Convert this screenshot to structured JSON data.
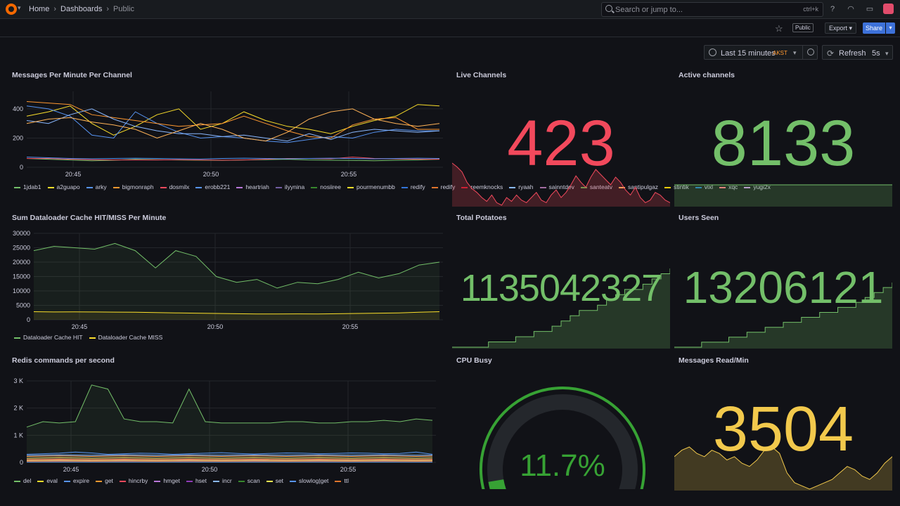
{
  "topbar": {
    "breadcrumb": [
      "Home",
      "Dashboards",
      "Public"
    ],
    "search_placeholder": "Search or jump to...",
    "search_shortcut": "ctrl+k"
  },
  "subbar": {
    "public_badge": "Public",
    "export_label": "Export",
    "share_label": "Share"
  },
  "controls": {
    "time_range": "Last 15 minutes",
    "timezone": "AKST",
    "refresh_label": "Refresh",
    "refresh_interval": "5s"
  },
  "panels": {
    "messages": {
      "title": "Messages Per Minute Per Channel"
    },
    "dataloader": {
      "title": "Sum Dataloader Cache HIT/MISS Per Minute"
    },
    "redis": {
      "title": "Redis commands per second"
    },
    "live": {
      "title": "Live Channels",
      "value": "423",
      "color": "#f2495c"
    },
    "active": {
      "title": "Active channels",
      "value": "8133",
      "color": "#73bf69"
    },
    "potatoes": {
      "title": "Total Potatoes",
      "value": "1135042327",
      "color": "#73bf69"
    },
    "users": {
      "title": "Users Seen",
      "value": "13206121",
      "color": "#73bf69"
    },
    "cpu": {
      "title": "CPU Busy",
      "value": "11.7%",
      "percent": 11.7,
      "color": "#37a234"
    },
    "msgread": {
      "title": "Messages Read/Min",
      "value": "3504",
      "color": "#f2c94c"
    }
  },
  "chart_data": [
    {
      "type": "line",
      "title": "Messages Per Minute Per Channel",
      "x_ticks": [
        "20:45",
        "20:50",
        "20:55"
      ],
      "y_ticks": [
        "0",
        "200",
        "400"
      ],
      "ylim": [
        0,
        520
      ],
      "series": [
        {
          "name": "1jdab1",
          "color": "#73bf69",
          "values": [
            60,
            55,
            50,
            45,
            48,
            55,
            52,
            50,
            48,
            47,
            50,
            52,
            55,
            50,
            48,
            47,
            45,
            48,
            50,
            55
          ]
        },
        {
          "name": "a2guapo",
          "color": "#fade2a",
          "values": [
            350,
            380,
            420,
            300,
            220,
            280,
            360,
            400,
            260,
            300,
            380,
            320,
            280,
            260,
            230,
            280,
            320,
            350,
            430,
            420
          ]
        },
        {
          "name": "arky",
          "color": "#5794f2",
          "values": [
            420,
            400,
            350,
            220,
            200,
            380,
            300,
            240,
            200,
            210,
            200,
            180,
            170,
            190,
            210,
            200,
            240,
            260,
            250,
            250
          ]
        },
        {
          "name": "bigmonraph",
          "color": "#ff9830",
          "values": [
            450,
            440,
            430,
            360,
            340,
            320,
            300,
            280,
            290,
            300,
            350,
            300,
            250,
            210,
            200,
            290,
            330,
            340,
            260,
            260
          ]
        },
        {
          "name": "dosmilx",
          "color": "#f2495c",
          "values": [
            60,
            60,
            55,
            52,
            50,
            50,
            50,
            52,
            50,
            48,
            50,
            55,
            60,
            60,
            58,
            70,
            60,
            58,
            55,
            55
          ]
        },
        {
          "name": "erobb221",
          "color": "#5794f2",
          "values": [
            70,
            65,
            60,
            58,
            60,
            62,
            60,
            58,
            56,
            60,
            62,
            60,
            58,
            60,
            62,
            60,
            58,
            60,
            62,
            60
          ]
        },
        {
          "name": "ryaah",
          "color": "#8ab8ff",
          "values": [
            320,
            300,
            360,
            400,
            330,
            280,
            250,
            230,
            230,
            210,
            220,
            200,
            180,
            230,
            190,
            240,
            260,
            250,
            240,
            250
          ]
        },
        {
          "name": "santipulgaz",
          "color": "#ffb357",
          "values": [
            300,
            330,
            340,
            310,
            290,
            260,
            200,
            250,
            300,
            260,
            200,
            180,
            240,
            330,
            380,
            400,
            330,
            300,
            280,
            300
          ]
        }
      ]
    },
    {
      "type": "area",
      "title": "Sum Dataloader Cache HIT/MISS Per Minute",
      "x_ticks": [
        "20:45",
        "20:50",
        "20:55"
      ],
      "y_ticks": [
        "0",
        "5000",
        "10000",
        "15000",
        "20000",
        "25000",
        "30000"
      ],
      "ylim": [
        0,
        30000
      ],
      "series": [
        {
          "name": "Dataloader Cache HIT",
          "color": "#73bf69",
          "values": [
            24000,
            25500,
            25000,
            24500,
            26500,
            24000,
            18000,
            24000,
            22000,
            15000,
            13000,
            14000,
            11000,
            13000,
            12500,
            14000,
            16500,
            14500,
            16000,
            19000,
            20000
          ]
        },
        {
          "name": "Dataloader Cache MISS",
          "color": "#fade2a",
          "values": [
            2800,
            2700,
            2750,
            2700,
            2650,
            2600,
            2500,
            2400,
            2300,
            2200,
            2100,
            2000,
            2000,
            2050,
            2000,
            2100,
            2200,
            2300,
            2400,
            2600,
            2800
          ]
        }
      ]
    },
    {
      "type": "area",
      "title": "Redis commands per second",
      "x_ticks": [
        "20:45",
        "20:50",
        "20:55"
      ],
      "y_ticks": [
        "0",
        "1 K",
        "2 K",
        "3 K"
      ],
      "ylim": [
        0,
        3000
      ],
      "series": [
        {
          "name": "del",
          "color": "#73bf69",
          "values": [
            1300,
            1500,
            1450,
            1500,
            2850,
            2700,
            1600,
            1500,
            1500,
            1450,
            2700,
            1500,
            1450,
            1450,
            1450,
            1450,
            1500,
            1500,
            1450,
            1450,
            1500,
            1500,
            1550,
            1500,
            1600,
            1550
          ]
        },
        {
          "name": "eval",
          "color": "#fade2a",
          "values": [
            150,
            160,
            170,
            160,
            150,
            160,
            170,
            160,
            150,
            160,
            170,
            160,
            150,
            160,
            170,
            160,
            150,
            160,
            170,
            160,
            150,
            160,
            170,
            160,
            150,
            160
          ]
        },
        {
          "name": "expire",
          "color": "#5794f2",
          "values": [
            300,
            320,
            340,
            380,
            350,
            300,
            320,
            340,
            330,
            300,
            320,
            340,
            360,
            330,
            310,
            330,
            350,
            340,
            320,
            330,
            350,
            340,
            320,
            330,
            380,
            300
          ]
        },
        {
          "name": "get",
          "color": "#ff9830",
          "values": [
            220,
            230,
            240,
            230,
            220,
            230,
            240,
            230,
            220,
            230,
            240,
            230,
            220,
            230,
            240,
            230,
            220,
            230,
            240,
            230,
            220,
            230,
            240,
            230,
            220,
            230
          ]
        },
        {
          "name": "hincrby",
          "color": "#f2495c",
          "values": [
            100,
            110,
            120,
            110,
            100,
            110,
            120,
            110,
            100,
            110,
            120,
            110,
            100,
            110,
            120,
            110,
            100,
            110,
            120,
            110,
            100,
            110,
            120,
            110,
            100,
            110
          ]
        },
        {
          "name": "hmget",
          "color": "#b877d9",
          "values": [
            50,
            60,
            70,
            60,
            50,
            60,
            70,
            60,
            50,
            60,
            70,
            60,
            50,
            60,
            70,
            60,
            50,
            60,
            70,
            60,
            50,
            60,
            70,
            60,
            50,
            60
          ]
        },
        {
          "name": "hset",
          "color": "#8f3bb8",
          "values": [
            30,
            35,
            40,
            35,
            30,
            35,
            40,
            35,
            30,
            35,
            40,
            35,
            30,
            35,
            40,
            35,
            30,
            35,
            40,
            35,
            30,
            35,
            40,
            35,
            30,
            35
          ]
        },
        {
          "name": "incr",
          "color": "#8ab8ff",
          "values": [
            260,
            270,
            280,
            270,
            260,
            270,
            280,
            270,
            260,
            270,
            280,
            270,
            260,
            270,
            280,
            270,
            260,
            270,
            280,
            270,
            260,
            270,
            280,
            270,
            260,
            270
          ]
        },
        {
          "name": "scan",
          "color": "#37872d",
          "values": [
            20,
            20,
            20,
            20,
            20,
            20,
            20,
            20,
            20,
            20,
            20,
            20,
            20,
            20,
            20,
            20,
            20,
            20,
            20,
            20,
            20,
            20,
            20,
            20,
            20,
            20
          ]
        },
        {
          "name": "set",
          "color": "#ffee52",
          "values": [
            80,
            85,
            90,
            85,
            80,
            85,
            90,
            85,
            80,
            85,
            90,
            85,
            80,
            85,
            90,
            85,
            80,
            85,
            90,
            85,
            80,
            85,
            90,
            85,
            80,
            85
          ]
        },
        {
          "name": "slowlog|get",
          "color": "#5794f2",
          "values": [
            10,
            10,
            10,
            10,
            10,
            10,
            10,
            10,
            10,
            10,
            10,
            10,
            10,
            10,
            10,
            10,
            10,
            10,
            10,
            10,
            10,
            10,
            10,
            10,
            10,
            10
          ]
        },
        {
          "name": "ttl",
          "color": "#e0752d",
          "values": [
            40,
            45,
            50,
            45,
            40,
            45,
            50,
            45,
            40,
            45,
            50,
            45,
            40,
            45,
            50,
            45,
            40,
            45,
            50,
            45,
            40,
            45,
            50,
            45,
            40,
            45
          ]
        }
      ]
    }
  ],
  "legend": {
    "messages": [
      {
        "name": "1jdab1",
        "color": "#73bf69"
      },
      {
        "name": "a2guapo",
        "color": "#fade2a"
      },
      {
        "name": "arky",
        "color": "#5794f2"
      },
      {
        "name": "bigmonraph",
        "color": "#ff9830"
      },
      {
        "name": "dosmilx",
        "color": "#f2495c"
      },
      {
        "name": "erobb221",
        "color": "#5794f2"
      },
      {
        "name": "heartriah",
        "color": "#b877d9"
      },
      {
        "name": "ilyynina",
        "color": "#705da0"
      },
      {
        "name": "nosiiree",
        "color": "#37872d"
      },
      {
        "name": "pourmenumbb",
        "color": "#fade2a"
      },
      {
        "name": "redify",
        "color": "#3274d9"
      },
      {
        "name": "redify",
        "color": "#e0752d"
      },
      {
        "name": "reemknocks",
        "color": "#c4162a"
      },
      {
        "name": "ryaah",
        "color": "#8ab8ff"
      },
      {
        "name": "sainntdev",
        "color": "#a16ca0"
      },
      {
        "name": "santeatv",
        "color": "#56a64b"
      },
      {
        "name": "santipulgaz",
        "color": "#ffb357"
      },
      {
        "name": "stintik",
        "color": "#f2cc0c"
      },
      {
        "name": "vixl",
        "color": "#1f78c1"
      },
      {
        "name": "xqc",
        "color": "#ff7383"
      },
      {
        "name": "yugi2x",
        "color": "#ca95e5"
      }
    ],
    "dataloader": [
      {
        "name": "Dataloader Cache HIT",
        "color": "#73bf69"
      },
      {
        "name": "Dataloader Cache MISS",
        "color": "#fade2a"
      }
    ],
    "redis": [
      {
        "name": "del",
        "color": "#73bf69"
      },
      {
        "name": "eval",
        "color": "#fade2a"
      },
      {
        "name": "expire",
        "color": "#5794f2"
      },
      {
        "name": "get",
        "color": "#ff9830"
      },
      {
        "name": "hincrby",
        "color": "#f2495c"
      },
      {
        "name": "hmget",
        "color": "#b877d9"
      },
      {
        "name": "hset",
        "color": "#8f3bb8"
      },
      {
        "name": "incr",
        "color": "#8ab8ff"
      },
      {
        "name": "scan",
        "color": "#37872d"
      },
      {
        "name": "set",
        "color": "#ffee52"
      },
      {
        "name": "slowlog|get",
        "color": "#5794f2"
      },
      {
        "name": "ttl",
        "color": "#e0752d"
      }
    ]
  },
  "sparks": {
    "live": [
      45,
      42,
      38,
      30,
      25,
      22,
      18,
      15,
      20,
      14,
      12,
      18,
      15,
      20,
      16,
      14,
      18,
      22,
      16,
      14,
      20,
      24,
      18,
      22,
      28,
      35,
      30,
      26,
      34,
      40,
      36,
      32,
      28,
      34,
      30,
      24,
      20,
      26,
      18,
      14,
      16,
      22,
      20,
      16,
      14
    ],
    "potatoes": [
      1,
      1,
      1,
      1,
      2,
      2,
      2,
      3,
      3,
      4,
      4,
      5,
      6,
      7,
      8,
      8,
      9,
      10,
      11,
      12,
      12,
      13,
      14,
      15,
      16
    ],
    "users": [
      1,
      1,
      1,
      2,
      2,
      2,
      3,
      3,
      4,
      4,
      5,
      5,
      6,
      6,
      7,
      7,
      8,
      8,
      9,
      9,
      10,
      11,
      12,
      13,
      14
    ],
    "msgread": [
      30,
      34,
      36,
      32,
      30,
      34,
      32,
      28,
      30,
      26,
      24,
      28,
      34,
      36,
      32,
      20,
      14,
      12,
      10,
      12,
      14,
      16,
      20,
      24,
      22,
      18,
      16,
      20,
      26,
      30
    ]
  }
}
